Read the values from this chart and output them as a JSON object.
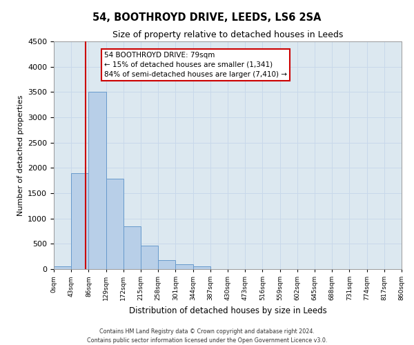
{
  "title": "54, BOOTHROYD DRIVE, LEEDS, LS6 2SA",
  "subtitle": "Size of property relative to detached houses in Leeds",
  "xlabel": "Distribution of detached houses by size in Leeds",
  "ylabel": "Number of detached properties",
  "bin_labels": [
    "0sqm",
    "43sqm",
    "86sqm",
    "129sqm",
    "172sqm",
    "215sqm",
    "258sqm",
    "301sqm",
    "344sqm",
    "387sqm",
    "430sqm",
    "473sqm",
    "516sqm",
    "559sqm",
    "602sqm",
    "645sqm",
    "688sqm",
    "731sqm",
    "774sqm",
    "817sqm",
    "860sqm"
  ],
  "bar_values": [
    50,
    1900,
    3500,
    1780,
    850,
    460,
    175,
    90,
    50,
    0,
    0,
    0,
    0,
    0,
    0,
    0,
    0,
    0,
    0,
    0
  ],
  "bar_color": "#b8cfe8",
  "bar_edge_color": "#6699cc",
  "vline_x": 79,
  "vline_color": "#cc0000",
  "ylim": [
    0,
    4500
  ],
  "yticks": [
    0,
    500,
    1000,
    1500,
    2000,
    2500,
    3000,
    3500,
    4000,
    4500
  ],
  "annotation_title": "54 BOOTHROYD DRIVE: 79sqm",
  "annotation_line1": "← 15% of detached houses are smaller (1,341)",
  "annotation_line2": "84% of semi-detached houses are larger (7,410) →",
  "annotation_box_color": "#cc0000",
  "footer_line1": "Contains HM Land Registry data © Crown copyright and database right 2024.",
  "footer_line2": "Contains public sector information licensed under the Open Government Licence v3.0.",
  "grid_color": "#c8d8ea",
  "bg_color": "#dce8f0"
}
